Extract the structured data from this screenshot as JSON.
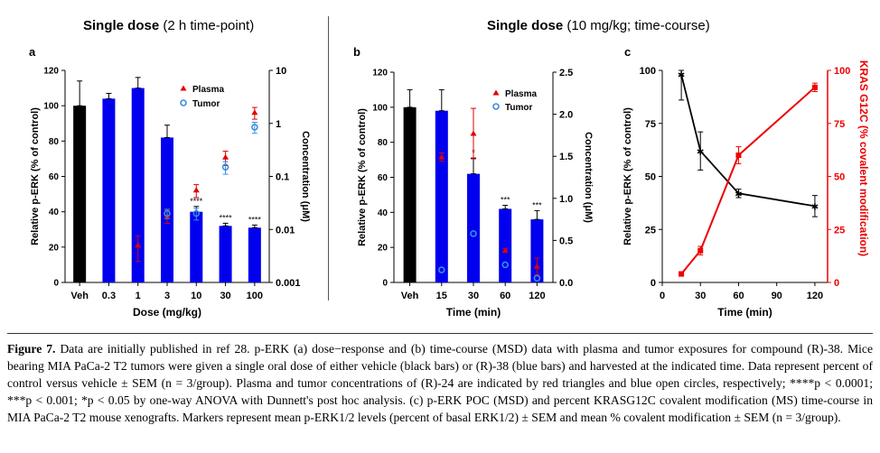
{
  "headers": {
    "left_bold": "Single dose",
    "left_normal": " (2 h time-point)",
    "right_bold": "Single dose",
    "right_normal": " (10 mg/kg; time-course)"
  },
  "caption": {
    "label": "Figure 7.",
    "text": " Data are initially published in ref 28. p-ERK (a) dose−response and (b) time-course (MSD) data with plasma and tumor exposures for compound (R)-38. Mice bearing MIA PaCa-2 T2 tumors were given a single oral dose of either vehicle (black bars) or (R)-38 (blue bars) and harvested at the indicated time. Data represent percent of control versus vehicle ± SEM (n = 3/group). Plasma and tumor concentrations of (R)-24 are indicated by red triangles and blue open circles, respectively; ****p < 0.0001; ***p < 0.001; *p < 0.05 by one-way ANOVA with Dunnett's post hoc analysis. (c) p-ERK POC (MSD) and percent KRASG12C covalent modification (MS) time-course in MIA PaCa-2 T2 mouse xenografts. Markers represent mean p-ERK1/2 levels (percent of basal ERK1/2) ± SEM and mean % covalent modification ± SEM (n = 3/group)."
  },
  "colors": {
    "black_bar": "#000000",
    "blue_bar": "#0000ee",
    "plasma": "#e00000",
    "tumor": "#3c8ce0",
    "red_line": "#ee0000"
  },
  "chart_data": [
    {
      "panel": "a",
      "type": "bar",
      "xlabel": "Dose  (mg/kg)",
      "ylabel": "Relative p-ERK  (% of control)",
      "y2label": "Concentration (μM)",
      "categories": [
        "Veh",
        "0.3",
        "1",
        "3",
        "10",
        "30",
        "100"
      ],
      "ylim": [
        0,
        120
      ],
      "yticks": [
        "0",
        "20",
        "40",
        "60",
        "80",
        "100",
        "120"
      ],
      "y2ticks": [
        "10",
        "1",
        "0.1",
        "0.01",
        "0.001"
      ],
      "y2_scale": "log",
      "y2lim": [
        0.001,
        10
      ],
      "bars": [
        {
          "value": 100,
          "err": 14,
          "color": "black"
        },
        {
          "value": 104,
          "err": 3,
          "color": "blue"
        },
        {
          "value": 110,
          "err": 6,
          "color": "blue"
        },
        {
          "value": 82,
          "err": 7,
          "color": "blue"
        },
        {
          "value": 40,
          "err": 3,
          "color": "blue"
        },
        {
          "value": 32,
          "err": 1.5,
          "color": "blue"
        },
        {
          "value": 31,
          "err": 1.5,
          "color": "blue"
        }
      ],
      "significance": [
        "",
        "",
        "",
        "",
        "****",
        "****",
        "****"
      ],
      "plasma": [
        null,
        null,
        0.005,
        0.018,
        0.055,
        0.23,
        1.6
      ],
      "plasma_err": [
        null,
        null,
        0.0025,
        0.005,
        0.015,
        0.07,
        0.4
      ],
      "tumor": [
        null,
        null,
        null,
        0.02,
        0.02,
        0.15,
        0.85
      ],
      "tumor_err": [
        null,
        null,
        null,
        0.004,
        0.005,
        0.04,
        0.2
      ],
      "legend": [
        "Plasma",
        "Tumor"
      ],
      "legend_position": "top-right"
    },
    {
      "panel": "b",
      "type": "bar",
      "xlabel": "Time (min)",
      "ylabel": "Relative p-ERK  (% of control)",
      "y2label": "Concentration (μM)",
      "categories": [
        "Veh",
        "15",
        "30",
        "60",
        "120"
      ],
      "ylim": [
        0,
        120
      ],
      "yticks": [
        "0",
        "20",
        "40",
        "60",
        "80",
        "100",
        "120"
      ],
      "y2ticks": [
        "0.0",
        "0.5",
        "1.0",
        "1.5",
        "2.0",
        "2.5"
      ],
      "y2lim": [
        0,
        2.5
      ],
      "bars": [
        {
          "value": 100,
          "err": 10,
          "color": "black"
        },
        {
          "value": 98,
          "err": 12,
          "color": "blue"
        },
        {
          "value": 62,
          "err": 9,
          "color": "blue"
        },
        {
          "value": 42,
          "err": 2,
          "color": "blue"
        },
        {
          "value": 36,
          "err": 5,
          "color": "blue"
        }
      ],
      "significance": [
        "",
        "",
        "*",
        "***",
        "***"
      ],
      "plasma": [
        null,
        1.49,
        1.77,
        0.38,
        0.19
      ],
      "plasma_err": [
        null,
        0.05,
        0.3,
        0.02,
        0.1
      ],
      "tumor": [
        null,
        0.15,
        0.58,
        0.21,
        0.05
      ],
      "tumor_err": [
        null,
        0.01,
        0.03,
        0.01,
        0.01
      ],
      "legend": [
        "Plasma",
        "Tumor"
      ],
      "legend_position": "top-right"
    },
    {
      "panel": "c",
      "type": "line",
      "xlabel": "Time (min)",
      "ylabel": "Relative p-ERK (% of control)",
      "y2label": "KRAS G12C (% covalent modification)",
      "xlim": [
        0,
        130
      ],
      "xticks": [
        "0",
        "30",
        "60",
        "90",
        "120"
      ],
      "ylim": [
        0,
        100
      ],
      "yticks": [
        "0",
        "25",
        "50",
        "75",
        "100"
      ],
      "y2lim": [
        0,
        100
      ],
      "y2ticks": [
        "0",
        "25",
        "50",
        "75",
        "100"
      ],
      "series": [
        {
          "x": [
            15,
            30,
            60,
            120
          ],
          "y": [
            98,
            62,
            42,
            36
          ],
          "err": [
            12,
            9,
            2,
            5
          ],
          "color": "black",
          "marker": "star"
        },
        {
          "x": [
            15,
            30,
            60,
            120
          ],
          "y": [
            4,
            15,
            60,
            92
          ],
          "err": [
            1,
            2,
            4,
            2
          ],
          "color": "red",
          "marker": "square",
          "axis": "right"
        }
      ]
    }
  ]
}
